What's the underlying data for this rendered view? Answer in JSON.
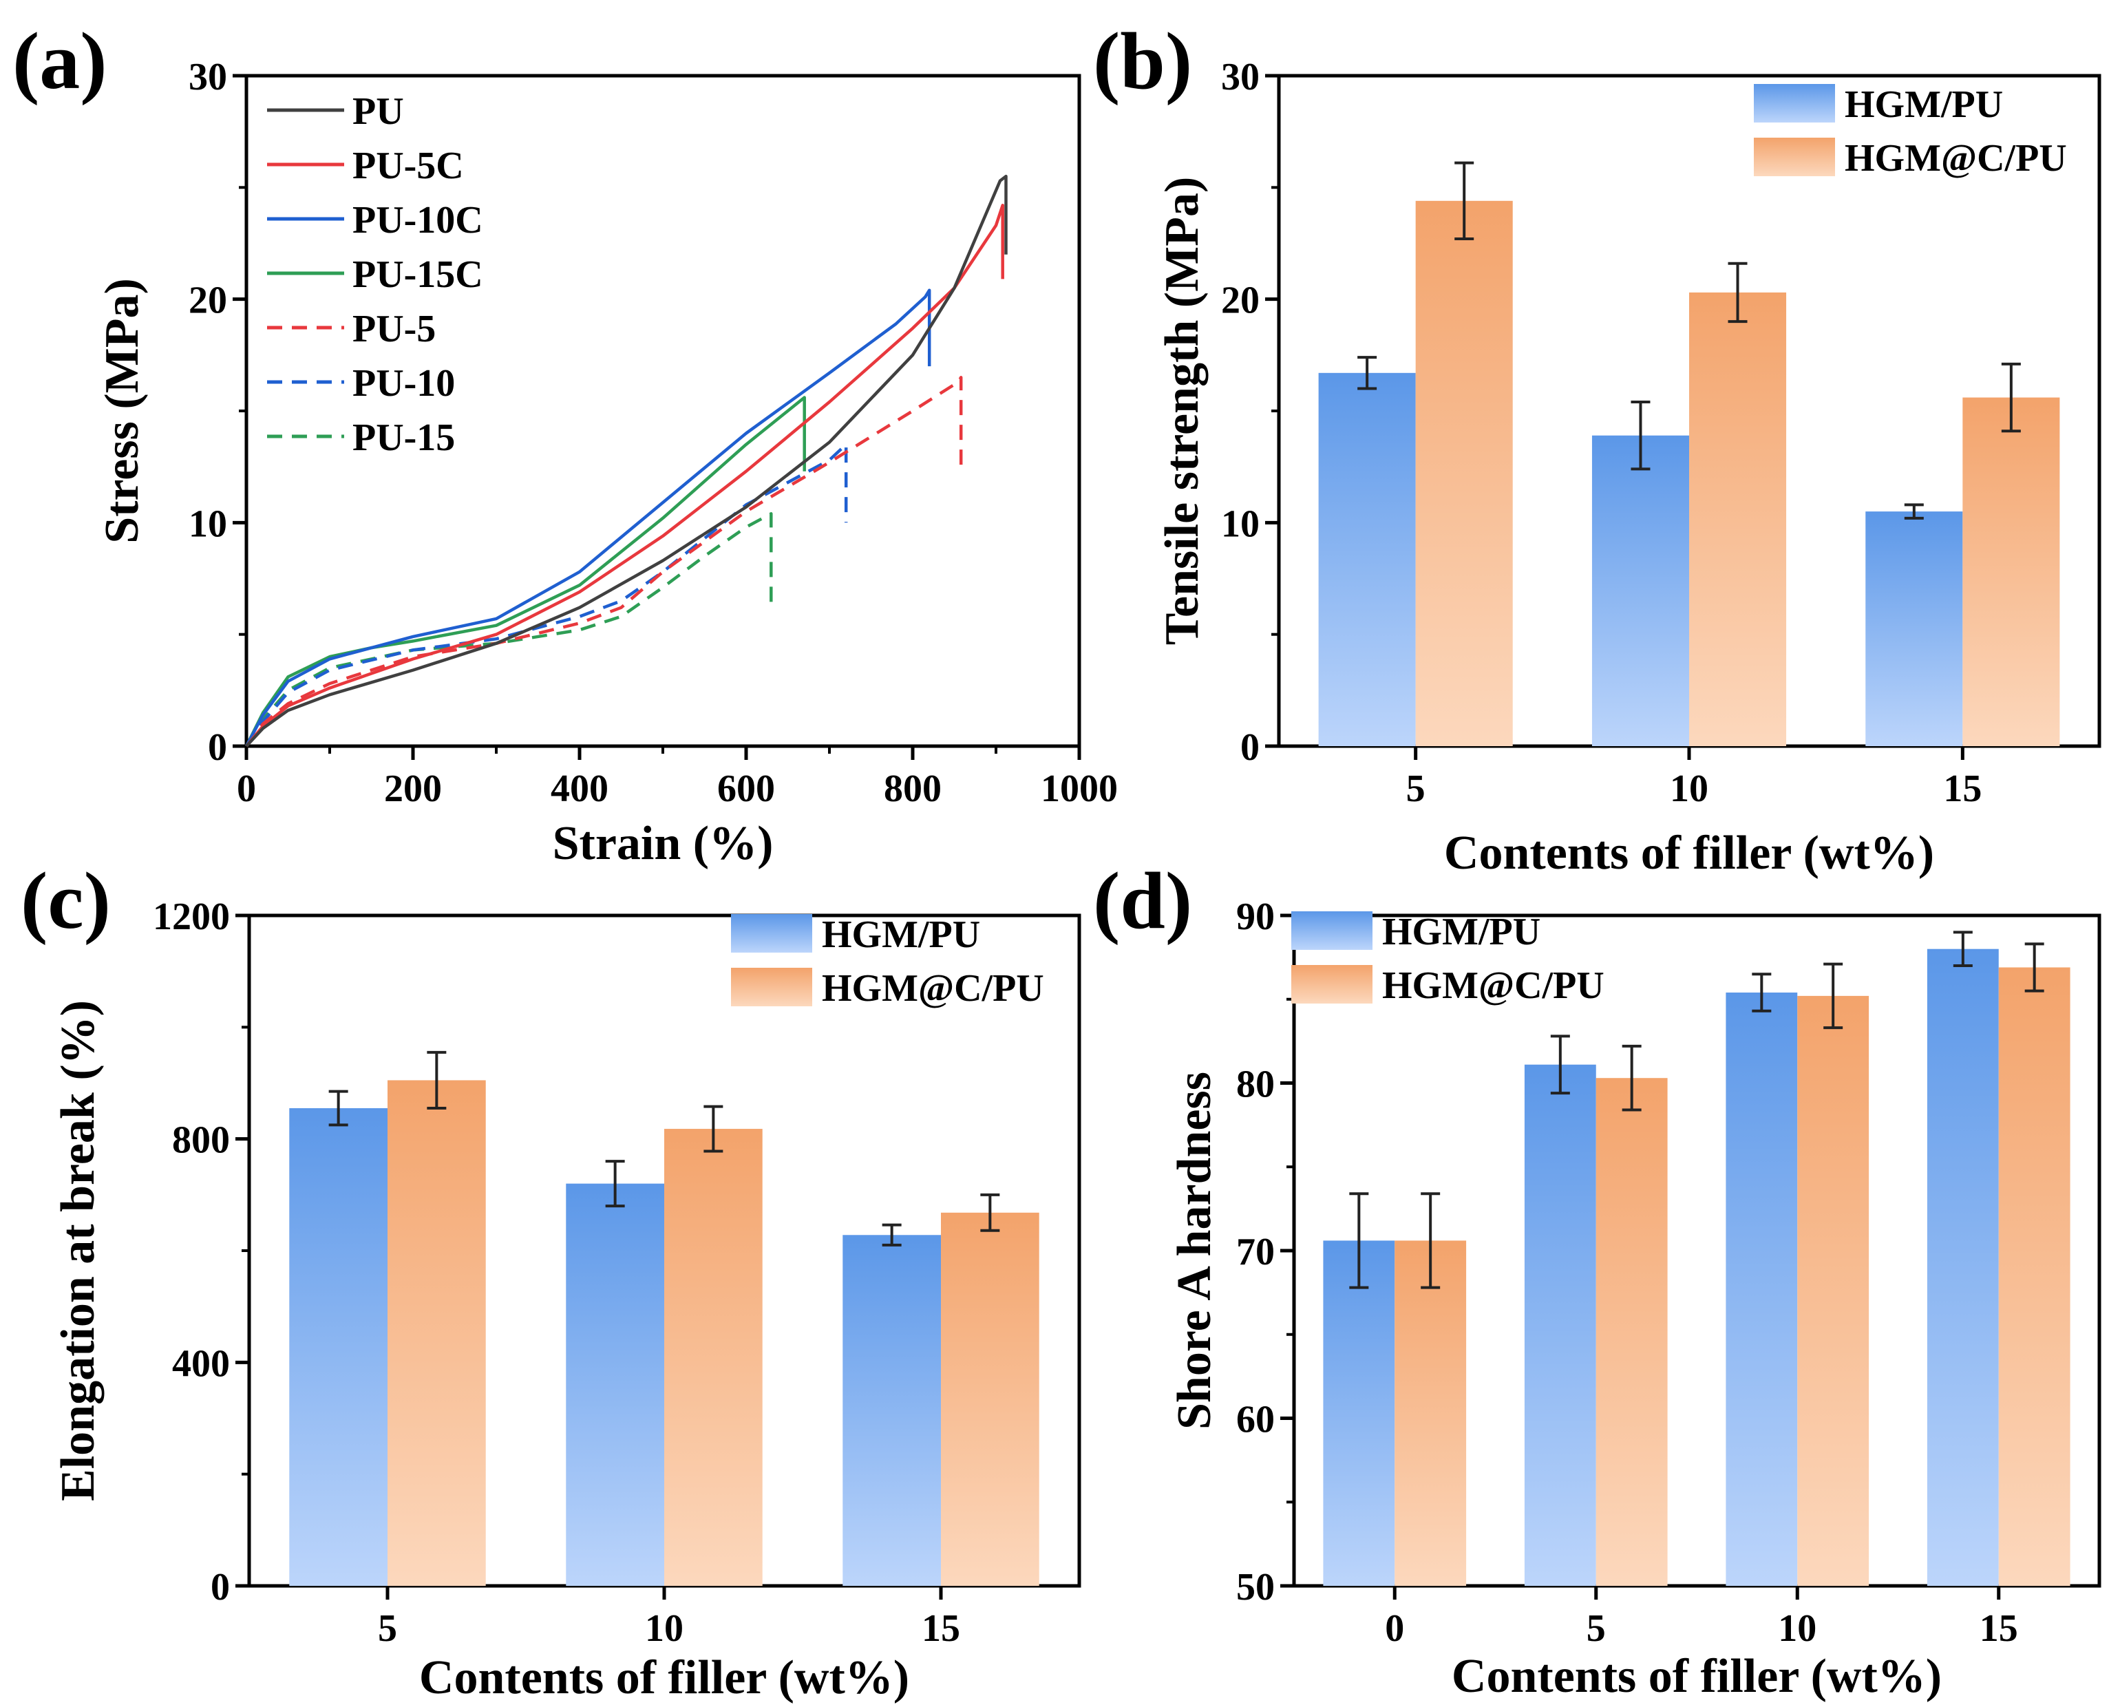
{
  "figure": {
    "colors": {
      "PU": "#404040",
      "PU-5C": "#e8383d",
      "PU-10C": "#1f5fd0",
      "PU-15C": "#2e9e55",
      "PU-5": "#e8383d",
      "PU-10": "#1f5fd0",
      "PU-15": "#2e9e55",
      "blue_top": "#5b97e8",
      "blue_bottom": "#bcd5fb",
      "orange_top": "#f3a36b",
      "orange_bottom": "#fcd8bd",
      "errorbar": "#222222"
    }
  },
  "chart_data": [
    {
      "id": "a",
      "panel_label": "(a)",
      "type": "line",
      "xlabel": "Strain (%)",
      "ylabel": "Stress (MPa)",
      "xlim": [
        0,
        1000
      ],
      "ylim": [
        0,
        30
      ],
      "xticks": [
        0,
        200,
        400,
        600,
        800,
        1000
      ],
      "yticks": [
        0,
        10,
        20,
        30
      ],
      "legend_position": "top-left",
      "series": [
        {
          "name": "PU",
          "style": "solid",
          "color_key": "PU",
          "x": [
            0,
            20,
            50,
            100,
            200,
            300,
            400,
            500,
            600,
            700,
            800,
            850,
            905,
            912,
            912
          ],
          "y": [
            0,
            0.8,
            1.6,
            2.3,
            3.4,
            4.6,
            6.2,
            8.3,
            10.7,
            13.6,
            17.5,
            20.5,
            25.3,
            25.5,
            22.0
          ]
        },
        {
          "name": "PU-5C",
          "style": "solid",
          "color_key": "PU-5C",
          "x": [
            0,
            20,
            50,
            100,
            200,
            300,
            400,
            500,
            600,
            700,
            800,
            850,
            900,
            908,
            908
          ],
          "y": [
            0,
            0.9,
            1.8,
            2.6,
            3.9,
            5.0,
            6.9,
            9.4,
            12.3,
            15.4,
            18.7,
            20.5,
            23.3,
            24.2,
            20.9
          ]
        },
        {
          "name": "PU-10C",
          "style": "solid",
          "color_key": "PU-10C",
          "x": [
            0,
            20,
            50,
            100,
            200,
            300,
            400,
            500,
            600,
            700,
            780,
            815,
            820,
            820
          ],
          "y": [
            0,
            1.4,
            2.9,
            3.9,
            4.9,
            5.7,
            7.8,
            10.9,
            14.0,
            16.7,
            18.9,
            20.1,
            20.4,
            17.0
          ]
        },
        {
          "name": "PU-15C",
          "style": "solid",
          "color_key": "PU-15C",
          "x": [
            0,
            20,
            50,
            100,
            150,
            200,
            300,
            400,
            500,
            600,
            650,
            670,
            670
          ],
          "y": [
            0,
            1.5,
            3.1,
            4.0,
            4.4,
            4.7,
            5.4,
            7.2,
            10.2,
            13.5,
            15.0,
            15.6,
            12.3
          ]
        },
        {
          "name": "PU-5",
          "style": "dashed",
          "color_key": "PU-5",
          "x": [
            0,
            20,
            50,
            100,
            200,
            300,
            400,
            450,
            500,
            600,
            700,
            800,
            855,
            858,
            858
          ],
          "y": [
            0,
            1.0,
            1.9,
            2.8,
            4.0,
            4.6,
            5.5,
            6.2,
            7.8,
            10.5,
            12.7,
            15.0,
            16.3,
            16.5,
            12.4
          ]
        },
        {
          "name": "PU-10",
          "style": "dashed",
          "color_key": "PU-10",
          "x": [
            0,
            20,
            50,
            100,
            200,
            300,
            400,
            450,
            500,
            600,
            700,
            720,
            720
          ],
          "y": [
            0,
            1.1,
            2.4,
            3.4,
            4.3,
            4.8,
            5.8,
            6.5,
            7.8,
            10.8,
            12.8,
            13.5,
            10.0
          ]
        },
        {
          "name": "PU-15",
          "style": "dashed",
          "color_key": "PU-15",
          "x": [
            0,
            20,
            50,
            100,
            200,
            300,
            400,
            450,
            500,
            550,
            600,
            630,
            630
          ],
          "y": [
            0,
            1.2,
            2.5,
            3.5,
            4.3,
            4.6,
            5.2,
            5.8,
            7.1,
            8.5,
            9.8,
            10.4,
            6.2
          ]
        }
      ]
    },
    {
      "id": "b",
      "panel_label": "(b)",
      "type": "bar",
      "xlabel": "Contents of filler (wt%)",
      "ylabel": "Tensile strength (MPa)",
      "categories": [
        "5",
        "10",
        "15"
      ],
      "ylim": [
        0,
        30
      ],
      "yticks": [
        0,
        10,
        20,
        30
      ],
      "legend_position": "top-right",
      "series": [
        {
          "name": "HGM/PU",
          "fill": "blue",
          "values": [
            16.7,
            13.9,
            10.5
          ],
          "errors": [
            0.7,
            1.5,
            0.3
          ]
        },
        {
          "name": "HGM@C/PU",
          "fill": "orange",
          "values": [
            24.4,
            20.3,
            15.6
          ],
          "errors": [
            1.7,
            1.3,
            1.5
          ]
        }
      ]
    },
    {
      "id": "c",
      "panel_label": "(c)",
      "type": "bar",
      "xlabel": "Contents of filler (wt%)",
      "ylabel": "Elongation at break (%)",
      "categories": [
        "5",
        "10",
        "15"
      ],
      "ylim": [
        0,
        1200
      ],
      "yticks": [
        0,
        400,
        800,
        1200
      ],
      "legend_position": "top-right",
      "series": [
        {
          "name": "HGM/PU",
          "fill": "blue",
          "values": [
            855,
            720,
            628
          ],
          "errors": [
            30,
            40,
            18
          ]
        },
        {
          "name": "HGM@C/PU",
          "fill": "orange",
          "values": [
            905,
            818,
            668
          ],
          "errors": [
            50,
            40,
            32
          ]
        }
      ]
    },
    {
      "id": "d",
      "panel_label": "(d)",
      "type": "bar",
      "xlabel": "Contents of filler (wt%)",
      "ylabel": "Shore A hardness",
      "categories": [
        "0",
        "5",
        "10",
        "15"
      ],
      "ylim": [
        50,
        90
      ],
      "yticks": [
        50,
        60,
        70,
        80,
        90
      ],
      "legend_position": "top-left",
      "series": [
        {
          "name": "HGM/PU",
          "fill": "blue",
          "values": [
            70.6,
            81.1,
            85.4,
            88.0
          ],
          "errors": [
            2.8,
            1.7,
            1.1,
            1.0
          ]
        },
        {
          "name": "HGM@C/PU",
          "fill": "orange",
          "values": [
            70.6,
            80.3,
            85.2,
            86.9
          ],
          "errors": [
            2.8,
            1.9,
            1.9,
            1.4
          ]
        }
      ]
    }
  ]
}
